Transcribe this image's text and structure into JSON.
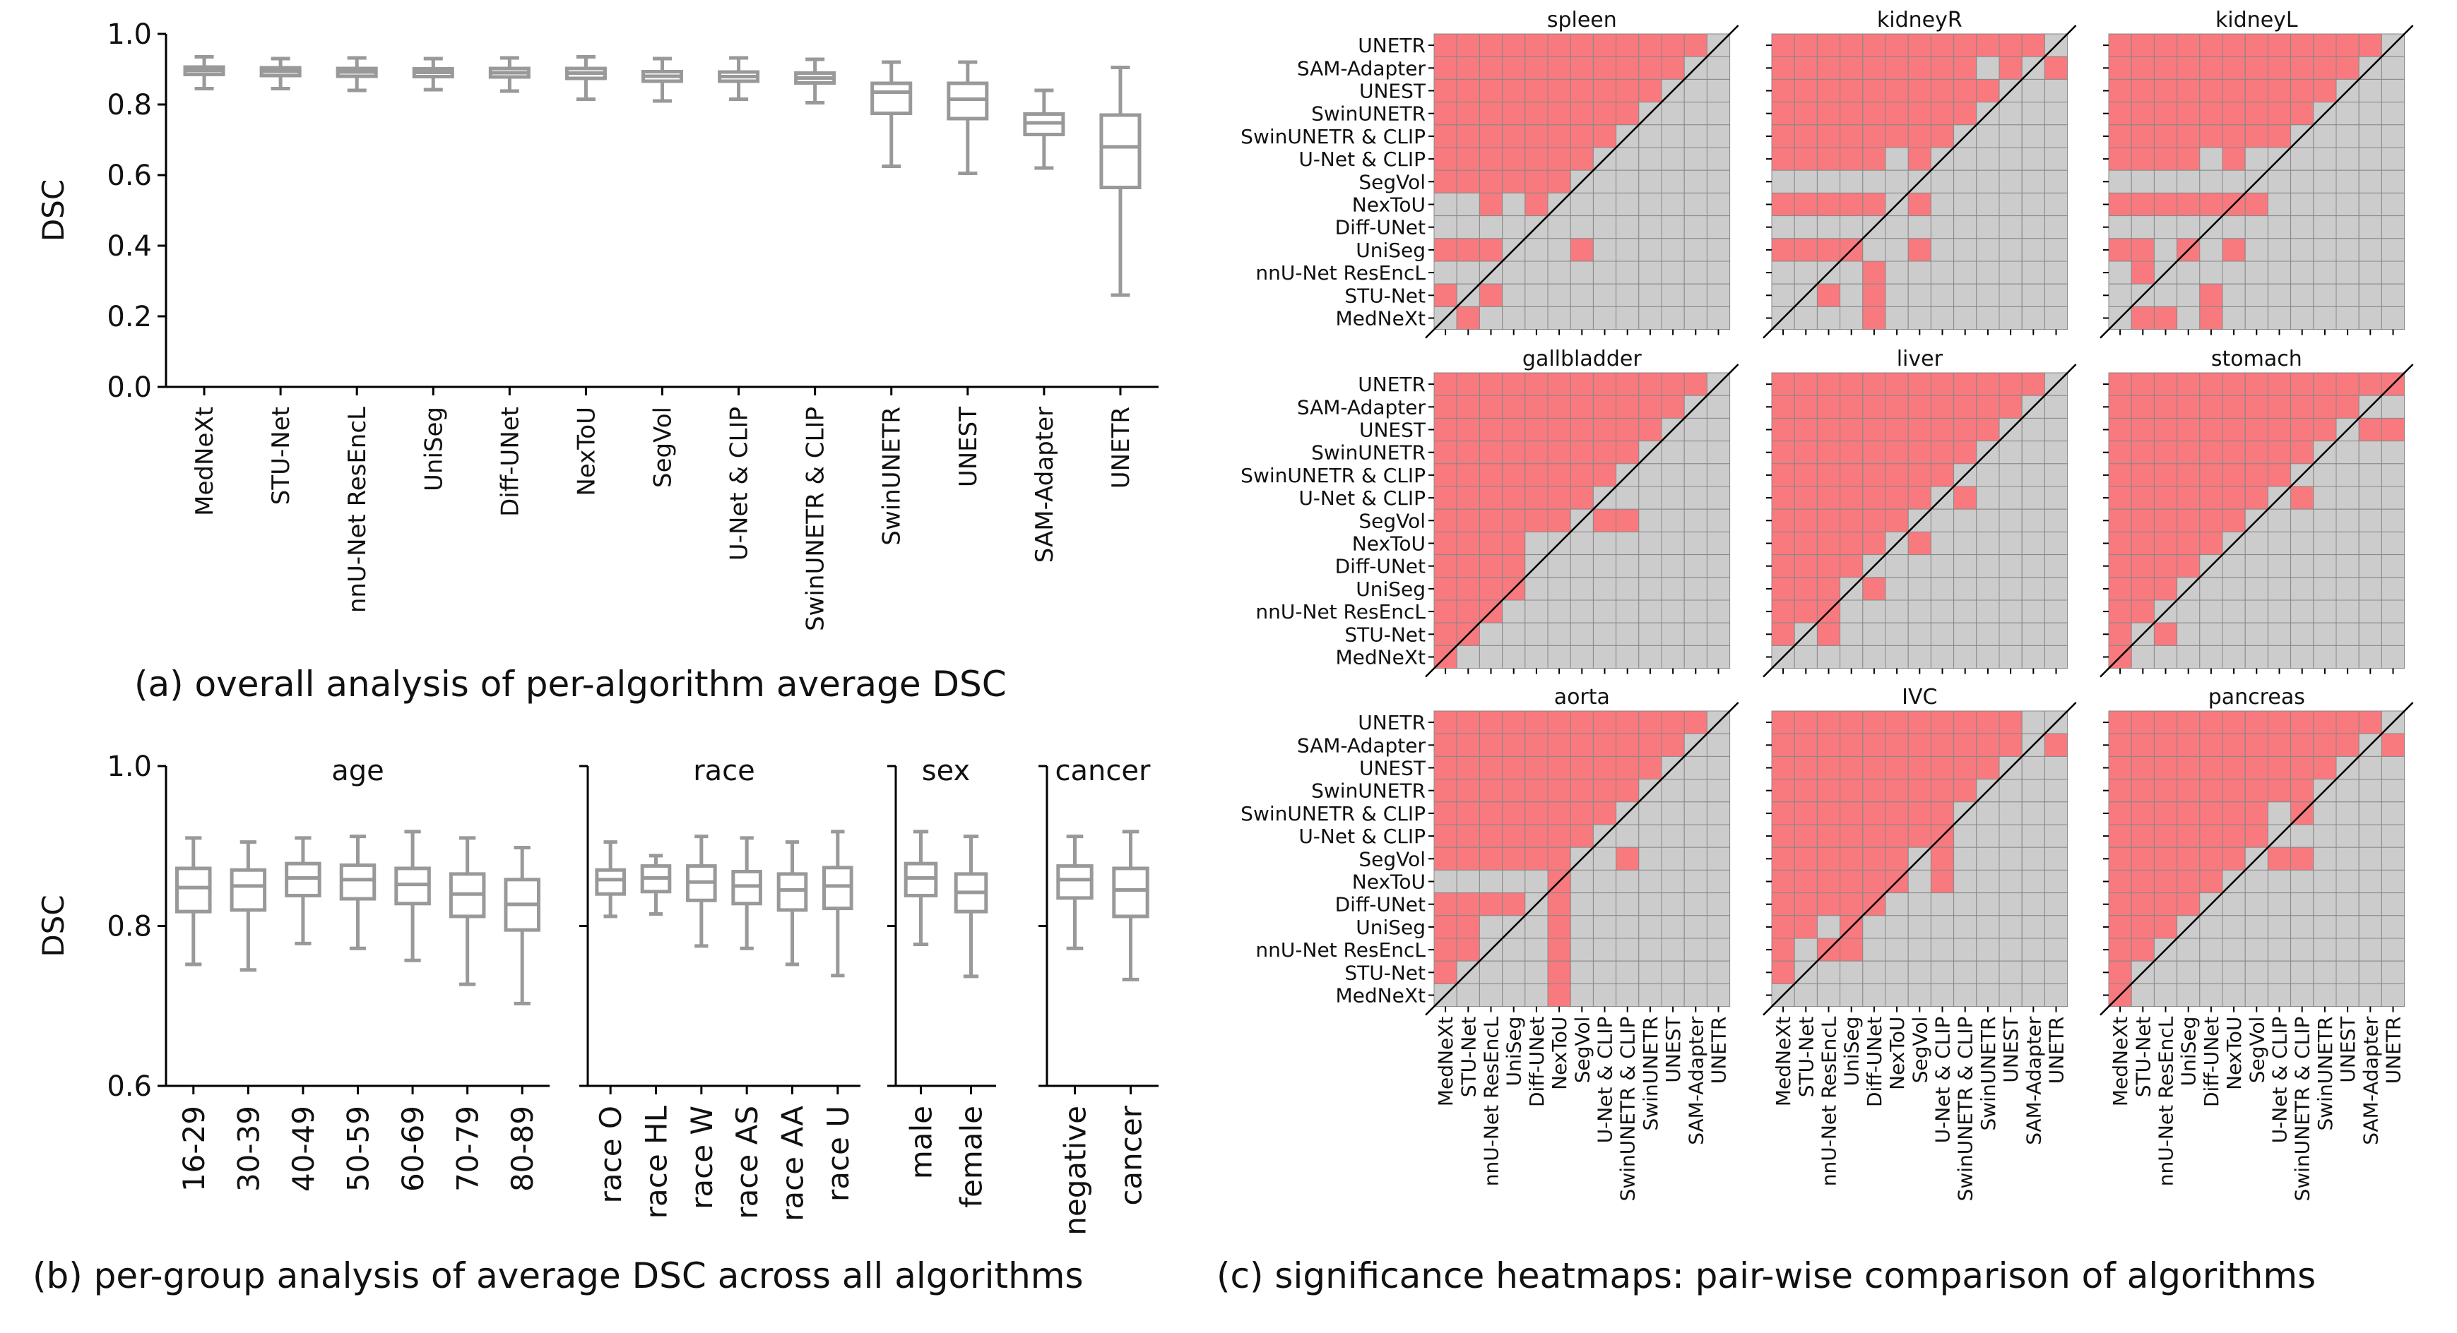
{
  "captions": {
    "a": "(a) overall analysis of per-algorithm average DSC",
    "b": "(b) per-group analysis of average DSC across all algorithms",
    "c": "(c) significance heatmaps: pair-wise comparison of algorithms"
  },
  "colors": {
    "box": "#999999",
    "significant": "#f8797e",
    "not_significant": "#cccccc",
    "grid_line": "#888888"
  },
  "chart_data": [
    {
      "id": "a",
      "type": "box",
      "ylabel": "DSC",
      "ylim": [
        0.0,
        1.0
      ],
      "yticks": [
        "0.0",
        "0.2",
        "0.4",
        "0.6",
        "0.8",
        "1.0"
      ],
      "categories": [
        "MedNeXt",
        "STU-Net",
        "nnU-Net ResEncL",
        "UniSeg",
        "Diff-UNet",
        "NexToU",
        "SegVol",
        "U-Net & CLIP",
        "SwinUNETR & CLIP",
        "SwinUNETR",
        "UNEST",
        "SAM-Adapter",
        "UNETR"
      ],
      "boxes": [
        [
          0.845,
          0.885,
          0.896,
          0.906,
          0.935
        ],
        [
          0.845,
          0.882,
          0.894,
          0.904,
          0.93
        ],
        [
          0.84,
          0.88,
          0.892,
          0.902,
          0.932
        ],
        [
          0.842,
          0.879,
          0.891,
          0.901,
          0.93
        ],
        [
          0.838,
          0.878,
          0.89,
          0.902,
          0.932
        ],
        [
          0.815,
          0.874,
          0.889,
          0.902,
          0.935
        ],
        [
          0.81,
          0.866,
          0.88,
          0.893,
          0.93
        ],
        [
          0.815,
          0.866,
          0.879,
          0.892,
          0.932
        ],
        [
          0.805,
          0.861,
          0.875,
          0.889,
          0.928
        ],
        [
          0.625,
          0.775,
          0.835,
          0.86,
          0.92
        ],
        [
          0.605,
          0.76,
          0.815,
          0.86,
          0.92
        ],
        [
          0.62,
          0.715,
          0.748,
          0.773,
          0.84
        ],
        [
          0.26,
          0.565,
          0.68,
          0.77,
          0.905
        ]
      ]
    },
    {
      "id": "b",
      "type": "box",
      "ylabel": "DSC",
      "ylim": [
        0.6,
        1.0
      ],
      "yticks": [
        "0.6",
        "0.8",
        "1.0"
      ],
      "groups": [
        {
          "title": "age",
          "categories": [
            "16-29",
            "30-39",
            "40-49",
            "50-59",
            "60-69",
            "70-79",
            "80-89"
          ],
          "boxes": [
            [
              0.752,
              0.818,
              0.848,
              0.872,
              0.91
            ],
            [
              0.745,
              0.82,
              0.85,
              0.87,
              0.905
            ],
            [
              0.778,
              0.838,
              0.86,
              0.878,
              0.91
            ],
            [
              0.772,
              0.834,
              0.858,
              0.876,
              0.912
            ],
            [
              0.757,
              0.828,
              0.852,
              0.872,
              0.918
            ],
            [
              0.727,
              0.812,
              0.84,
              0.865,
              0.91
            ],
            [
              0.703,
              0.795,
              0.827,
              0.858,
              0.898
            ]
          ]
        },
        {
          "title": "race",
          "categories": [
            "race O",
            "race HL",
            "race W",
            "race AS",
            "race AA",
            "race U"
          ],
          "boxes": [
            [
              0.812,
              0.84,
              0.858,
              0.87,
              0.905
            ],
            [
              0.815,
              0.843,
              0.86,
              0.875,
              0.888
            ],
            [
              0.775,
              0.832,
              0.855,
              0.875,
              0.912
            ],
            [
              0.772,
              0.828,
              0.85,
              0.868,
              0.91
            ],
            [
              0.752,
              0.82,
              0.845,
              0.865,
              0.905
            ],
            [
              0.738,
              0.822,
              0.85,
              0.873,
              0.918
            ]
          ]
        },
        {
          "title": "sex",
          "categories": [
            "male",
            "female"
          ],
          "boxes": [
            [
              0.777,
              0.838,
              0.86,
              0.878,
              0.918
            ],
            [
              0.737,
              0.818,
              0.842,
              0.865,
              0.912
            ]
          ]
        },
        {
          "title": "cancer",
          "categories": [
            "negative",
            "cancer"
          ],
          "boxes": [
            [
              0.772,
              0.835,
              0.858,
              0.875,
              0.912
            ],
            [
              0.733,
              0.812,
              0.845,
              0.872,
              0.918
            ]
          ]
        }
      ]
    },
    {
      "id": "c",
      "type": "heatmap",
      "row_labels": [
        "UNETR",
        "SAM-Adapter",
        "UNEST",
        "SwinUNETR",
        "SwinUNETR & CLIP",
        "U-Net & CLIP",
        "SegVol",
        "NexToU",
        "Diff-UNet",
        "UniSeg",
        "nnU-Net ResEncL",
        "STU-Net",
        "MedNeXt"
      ],
      "col_labels": [
        "MedNeXt",
        "STU-Net",
        "nnU-Net ResEncL",
        "UniSeg",
        "Diff-UNet",
        "NexToU",
        "SegVol",
        "U-Net & CLIP",
        "SwinUNETR & CLIP",
        "SwinUNETR",
        "UNEST",
        "SAM-Adapter",
        "UNETR"
      ],
      "panels": [
        {
          "title": "spleen",
          "rows": [
            "1111111111110",
            "1111111111100",
            "1111111111000",
            "1111111110000",
            "1111111100000",
            "1111111000000",
            "1111110000000",
            "0010100000000",
            "0000000000000",
            "1110001000000",
            "0000000000000",
            "1010000000000",
            "0100000000000"
          ]
        },
        {
          "title": "kidneyR",
          "rows": [
            "1111111111110",
            "1111111110101",
            "1111111111000",
            "1111111110000",
            "1111111100000",
            "1111101000000",
            "0000000000000",
            "1111101000000",
            "0000000000000",
            "1111001000000",
            "0000100000000",
            "0010100000000",
            "0000100000000"
          ]
        },
        {
          "title": "kidneyL",
          "rows": [
            "1111111111110",
            "1111111111100",
            "1111111111000",
            "1111111110000",
            "1111111100000",
            "1111010000000",
            "0000000000000",
            "1111111000000",
            "0000000000000",
            "1101010000000",
            "0100000000000",
            "0000100000000",
            "0110100000000"
          ]
        },
        {
          "title": "gallbladder",
          "rows": [
            "1111111111110",
            "1111111111100",
            "1111111111000",
            "1111111110000",
            "1111111100000",
            "1111111000000",
            "1111110110000",
            "1111000000000",
            "1111000000000",
            "1111000000000",
            "1110000000000",
            "1100000000000",
            "1000000000000"
          ]
        },
        {
          "title": "liver",
          "rows": [
            "1111111111110",
            "1111111111100",
            "1111111111000",
            "1111111110000",
            "1111111100000",
            "1111111010000",
            "1111110000000",
            "1111101000000",
            "1111000000000",
            "1110100000000",
            "1110000000000",
            "1010000000000",
            "0000000000000"
          ]
        },
        {
          "title": "stomach",
          "rows": [
            "1111111111111",
            "1111111111100",
            "1111111111011",
            "1111111110000",
            "1111111100000",
            "1111111010000",
            "1111110000000",
            "1111100000000",
            "1111000000000",
            "1110000000000",
            "1100000000000",
            "1010000000000",
            "1000000000000"
          ]
        },
        {
          "title": "aorta",
          "rows": [
            "1111111111110",
            "1111111111100",
            "1111111111000",
            "1111111110000",
            "1111111100000",
            "1111111000000",
            "1111110010000",
            "0000010000000",
            "1111010000000",
            "1100010000000",
            "1100010000000",
            "1000010000000",
            "0000010000000"
          ]
        },
        {
          "title": "IVC",
          "rows": [
            "1111111111100",
            "1111111111101",
            "1111111111000",
            "1111111110000",
            "1111111100000",
            "1111111100000",
            "1111110100000",
            "1111110100000",
            "1111100000000",
            "1101000000000",
            "1011000000000",
            "1000000000000",
            "0000000000000"
          ]
        },
        {
          "title": "pancreas",
          "rows": [
            "1111111111110",
            "1111111111101",
            "1111111111000",
            "1111111110000",
            "1111111010000",
            "1111111000000",
            "1111110110000",
            "1111100000000",
            "1111000000000",
            "1110000000000",
            "1100000000000",
            "1000000000000",
            "1000000000000"
          ]
        }
      ]
    }
  ]
}
